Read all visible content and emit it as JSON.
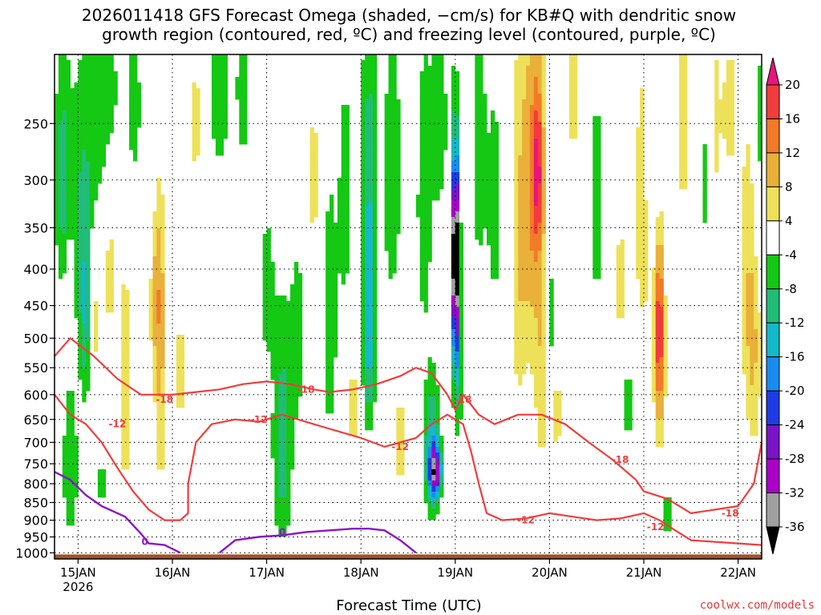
{
  "chart_data": {
    "type": "heatmap",
    "title_line1": "2026011418 GFS Forecast Omega (shaded, −cm/s) for KB#Q with dendritic snow",
    "title_line2": "growth region (contoured, red, ºC) and freezing level (contoured, purple, ºC)",
    "xlabel": "Forecast Time (UTC)",
    "ylabel": "",
    "credit": "coolwx.com/models",
    "x_ticks": [
      {
        "label": "15JAN",
        "sublabel": "2026",
        "hour": 6
      },
      {
        "label": "16JAN",
        "sublabel": "",
        "hour": 30
      },
      {
        "label": "17JAN",
        "sublabel": "",
        "hour": 54
      },
      {
        "label": "18JAN",
        "sublabel": "",
        "hour": 78
      },
      {
        "label": "19JAN",
        "sublabel": "",
        "hour": 102
      },
      {
        "label": "20JAN",
        "sublabel": "",
        "hour": 126
      },
      {
        "label": "21JAN",
        "sublabel": "",
        "hour": 150
      },
      {
        "label": "22JAN",
        "sublabel": "",
        "hour": 174
      }
    ],
    "x_range_hours": [
      0,
      180
    ],
    "y_ticks": [
      250,
      300,
      350,
      400,
      450,
      500,
      550,
      600,
      650,
      700,
      750,
      800,
      850,
      900,
      950,
      1000
    ],
    "y_range_hpa": [
      1020,
      200
    ],
    "colorbar": {
      "labels": [
        20,
        16,
        12,
        8,
        4,
        -4,
        -8,
        -12,
        -16,
        -20,
        -24,
        -28,
        -32,
        -36
      ],
      "bins": [
        {
          "lo": 20,
          "color": "#e8157a"
        },
        {
          "lo": 16,
          "color": "#f23c3c"
        },
        {
          "lo": 12,
          "color": "#f27a28"
        },
        {
          "lo": 8,
          "color": "#e9b03a"
        },
        {
          "lo": 4,
          "color": "#eee15a"
        },
        {
          "lo": -4,
          "color": "#ffffff"
        },
        {
          "lo": -8,
          "color": "#14c814"
        },
        {
          "lo": -12,
          "color": "#20bc78"
        },
        {
          "lo": -16,
          "color": "#14b8c8"
        },
        {
          "lo": -20,
          "color": "#1a8cf0"
        },
        {
          "lo": -24,
          "color": "#1e3ce6"
        },
        {
          "lo": -28,
          "color": "#7a14c8"
        },
        {
          "lo": -32,
          "color": "#aa00c8"
        },
        {
          "lo": -36,
          "color": "#a0a0a0"
        },
        {
          "lo": -99,
          "color": "#000000"
        }
      ]
    },
    "omega_blobs": [
      {
        "t": 2,
        "p": 300,
        "dt": 2,
        "dp": 120,
        "v": -10
      },
      {
        "t": 6,
        "p": 350,
        "dt": 2.5,
        "dp": 150,
        "v": -7
      },
      {
        "t": 10,
        "p": 250,
        "dt": 3,
        "dp": 100,
        "v": -6
      },
      {
        "t": 14,
        "p": 230,
        "dt": 3,
        "dp": 80,
        "v": -6
      },
      {
        "t": 20,
        "p": 230,
        "dt": 2,
        "dp": 80,
        "v": -6
      },
      {
        "t": 24,
        "p": 300,
        "dt": 2,
        "dp": 120,
        "v": -5
      },
      {
        "t": 8,
        "p": 470,
        "dt": 1.5,
        "dp": 140,
        "v": -11
      },
      {
        "t": 4,
        "p": 760,
        "dt": 2,
        "dp": 200,
        "v": -8
      },
      {
        "t": 12,
        "p": 800,
        "dt": 1.5,
        "dp": 100,
        "v": -5
      },
      {
        "t": 4,
        "p": 420,
        "dt": 1.2,
        "dp": 60,
        "v": 8
      },
      {
        "t": 10,
        "p": 480,
        "dt": 1.5,
        "dp": 100,
        "v": 6
      },
      {
        "t": 14,
        "p": 400,
        "dt": 2,
        "dp": 150,
        "v": 5
      },
      {
        "t": 18,
        "p": 600,
        "dt": 1.5,
        "dp": 250,
        "v": 7
      },
      {
        "t": 26,
        "p": 420,
        "dt": 2,
        "dp": 140,
        "v": 10
      },
      {
        "t": 27,
        "p": 620,
        "dt": 1.5,
        "dp": 220,
        "v": 7
      },
      {
        "t": 32,
        "p": 560,
        "dt": 1.5,
        "dp": 200,
        "v": 5
      },
      {
        "t": 36,
        "p": 250,
        "dt": 2,
        "dp": 80,
        "v": 5
      },
      {
        "t": 42,
        "p": 230,
        "dt": 3,
        "dp": 80,
        "v": -6
      },
      {
        "t": 48,
        "p": 220,
        "dt": 2,
        "dp": 80,
        "v": -6
      },
      {
        "t": 54,
        "p": 430,
        "dt": 2,
        "dp": 120,
        "v": -6
      },
      {
        "t": 58,
        "p": 700,
        "dt": 2.5,
        "dp": 260,
        "v": -11
      },
      {
        "t": 62,
        "p": 500,
        "dt": 2,
        "dp": 160,
        "v": -6
      },
      {
        "t": 66,
        "p": 300,
        "dt": 2,
        "dp": 120,
        "v": 5
      },
      {
        "t": 70,
        "p": 480,
        "dt": 2,
        "dp": 220,
        "v": -7
      },
      {
        "t": 74,
        "p": 330,
        "dt": 2,
        "dp": 160,
        "v": -6
      },
      {
        "t": 76,
        "p": 620,
        "dt": 2,
        "dp": 180,
        "v": 5
      },
      {
        "t": 80,
        "p": 360,
        "dt": 2,
        "dp": 200,
        "v": -13
      },
      {
        "t": 80,
        "p": 560,
        "dt": 1.5,
        "dp": 120,
        "v": -8
      },
      {
        "t": 86,
        "p": 300,
        "dt": 2.5,
        "dp": 160,
        "v": -7
      },
      {
        "t": 88,
        "p": 700,
        "dt": 2,
        "dp": 200,
        "v": 5
      },
      {
        "t": 94,
        "p": 330,
        "dt": 2,
        "dp": 160,
        "v": -7
      },
      {
        "t": 96,
        "p": 720,
        "dt": 2,
        "dp": 160,
        "v": -14
      },
      {
        "t": 97,
        "p": 770,
        "dt": 1.5,
        "dp": 60,
        "v": -27
      },
      {
        "t": 98,
        "p": 250,
        "dt": 2.5,
        "dp": 100,
        "v": -6
      },
      {
        "t": 102,
        "p": 370,
        "dt": 0.6,
        "dp": 90,
        "v": -40
      },
      {
        "t": 102,
        "p": 420,
        "dt": 0.9,
        "dp": 150,
        "v": -25
      },
      {
        "t": 103,
        "p": 520,
        "dt": 1.2,
        "dp": 180,
        "v": -8
      },
      {
        "t": 108,
        "p": 280,
        "dt": 2,
        "dp": 120,
        "v": -7
      },
      {
        "t": 112,
        "p": 330,
        "dt": 2,
        "dp": 140,
        "v": -6
      },
      {
        "t": 118,
        "p": 400,
        "dt": 2,
        "dp": 250,
        "v": 6
      },
      {
        "t": 121,
        "p": 320,
        "dt": 2.5,
        "dp": 200,
        "v": 10
      },
      {
        "t": 123,
        "p": 290,
        "dt": 1.5,
        "dp": 80,
        "v": 15
      },
      {
        "t": 124,
        "p": 520,
        "dt": 2,
        "dp": 260,
        "v": 7
      },
      {
        "t": 126,
        "p": 470,
        "dt": 1.2,
        "dp": 100,
        "v": -9
      },
      {
        "t": 128,
        "p": 640,
        "dt": 2,
        "dp": 120,
        "v": 5
      },
      {
        "t": 132,
        "p": 230,
        "dt": 2,
        "dp": 80,
        "v": 5
      },
      {
        "t": 138,
        "p": 330,
        "dt": 2,
        "dp": 120,
        "v": -7
      },
      {
        "t": 144,
        "p": 420,
        "dt": 2,
        "dp": 120,
        "v": 5
      },
      {
        "t": 146,
        "p": 620,
        "dt": 2,
        "dp": 80,
        "v": -7
      },
      {
        "t": 150,
        "p": 330,
        "dt": 3,
        "dp": 200,
        "v": 6
      },
      {
        "t": 152,
        "p": 250,
        "dt": 1.5,
        "dp": 120,
        "v": -7
      },
      {
        "t": 154,
        "p": 470,
        "dt": 1.2,
        "dp": 120,
        "v": 16
      },
      {
        "t": 154,
        "p": 600,
        "dt": 1.5,
        "dp": 140,
        "v": 8
      },
      {
        "t": 156,
        "p": 880,
        "dt": 1,
        "dp": 60,
        "v": -9
      },
      {
        "t": 160,
        "p": 250,
        "dt": 2,
        "dp": 100,
        "v": 6
      },
      {
        "t": 166,
        "p": 300,
        "dt": 1.2,
        "dp": 80,
        "v": -7
      },
      {
        "t": 168,
        "p": 250,
        "dt": 2,
        "dp": 100,
        "v": 5
      },
      {
        "t": 172,
        "p": 240,
        "dt": 2,
        "dp": 60,
        "v": 6
      },
      {
        "t": 176,
        "p": 400,
        "dt": 2,
        "dp": 200,
        "v": 5
      },
      {
        "t": 178,
        "p": 520,
        "dt": 2,
        "dp": 200,
        "v": 8
      },
      {
        "t": 179,
        "p": 260,
        "dt": 1,
        "dp": 120,
        "v": -7
      }
    ],
    "dgz_contours": [
      {
        "label": "-12",
        "color": "#f23c3c",
        "points": [
          [
            0,
            600
          ],
          [
            4,
            640
          ],
          [
            8,
            660
          ],
          [
            12,
            700
          ],
          [
            16,
            760
          ],
          [
            20,
            820
          ],
          [
            24,
            870
          ],
          [
            28,
            900
          ],
          [
            32,
            900
          ],
          [
            34,
            880
          ],
          [
            34,
            800
          ],
          [
            36,
            700
          ],
          [
            40,
            660
          ],
          [
            46,
            650
          ],
          [
            52,
            655
          ],
          [
            58,
            640
          ],
          [
            62,
            650
          ],
          [
            66,
            660
          ],
          [
            70,
            670
          ],
          [
            74,
            680
          ],
          [
            78,
            690
          ],
          [
            84,
            710
          ],
          [
            88,
            700
          ],
          [
            92,
            690
          ],
          [
            96,
            660
          ],
          [
            100,
            640
          ],
          [
            104,
            660
          ],
          [
            106,
            720
          ],
          [
            108,
            800
          ],
          [
            110,
            880
          ],
          [
            114,
            900
          ],
          [
            120,
            895
          ],
          [
            126,
            880
          ],
          [
            132,
            890
          ],
          [
            138,
            900
          ],
          [
            144,
            895
          ],
          [
            150,
            880
          ],
          [
            154,
            900
          ],
          [
            158,
            930
          ],
          [
            162,
            960
          ],
          [
            168,
            965
          ],
          [
            174,
            970
          ],
          [
            180,
            975
          ]
        ],
        "labels": [
          [
            16,
            660
          ],
          [
            52,
            650
          ],
          [
            88,
            710
          ],
          [
            120,
            900
          ],
          [
            153,
            920
          ]
        ]
      },
      {
        "label": "-18",
        "color": "#f23c3c",
        "points": [
          [
            0,
            530
          ],
          [
            4,
            500
          ],
          [
            10,
            530
          ],
          [
            16,
            570
          ],
          [
            22,
            600
          ],
          [
            30,
            600
          ],
          [
            36,
            595
          ],
          [
            42,
            590
          ],
          [
            48,
            580
          ],
          [
            54,
            575
          ],
          [
            60,
            580
          ],
          [
            66,
            590
          ],
          [
            70,
            595
          ],
          [
            76,
            590
          ],
          [
            82,
            580
          ],
          [
            88,
            565
          ],
          [
            92,
            550
          ],
          [
            96,
            560
          ],
          [
            100,
            600
          ],
          [
            102,
            630
          ],
          [
            104,
            600
          ],
          [
            108,
            640
          ],
          [
            112,
            660
          ],
          [
            118,
            640
          ],
          [
            124,
            640
          ],
          [
            130,
            660
          ],
          [
            136,
            700
          ],
          [
            142,
            740
          ],
          [
            148,
            790
          ],
          [
            150,
            820
          ],
          [
            156,
            840
          ],
          [
            162,
            880
          ],
          [
            168,
            870
          ],
          [
            174,
            860
          ],
          [
            178,
            800
          ],
          [
            180,
            700
          ]
        ],
        "labels": [
          [
            28,
            610
          ],
          [
            64,
            590
          ],
          [
            104,
            610
          ],
          [
            144,
            740
          ],
          [
            172,
            880
          ]
        ]
      }
    ],
    "freezing_contour": {
      "label": "0",
      "color": "#8c14c8",
      "points": [
        [
          0,
          770
        ],
        [
          4,
          790
        ],
        [
          8,
          830
        ],
        [
          12,
          860
        ],
        [
          18,
          890
        ],
        [
          22,
          940
        ],
        [
          24,
          970
        ],
        [
          28,
          975
        ],
        [
          32,
          1000
        ]
      ],
      "points2": [
        [
          42,
          1000
        ],
        [
          46,
          960
        ],
        [
          52,
          950
        ],
        [
          58,
          945
        ],
        [
          64,
          935
        ],
        [
          70,
          930
        ],
        [
          76,
          925
        ],
        [
          80,
          925
        ],
        [
          84,
          930
        ],
        [
          88,
          960
        ],
        [
          92,
          1000
        ]
      ],
      "labels": [
        [
          23,
          965
        ],
        [
          58,
          935
        ]
      ]
    },
    "surface_color": "#a0522d"
  }
}
